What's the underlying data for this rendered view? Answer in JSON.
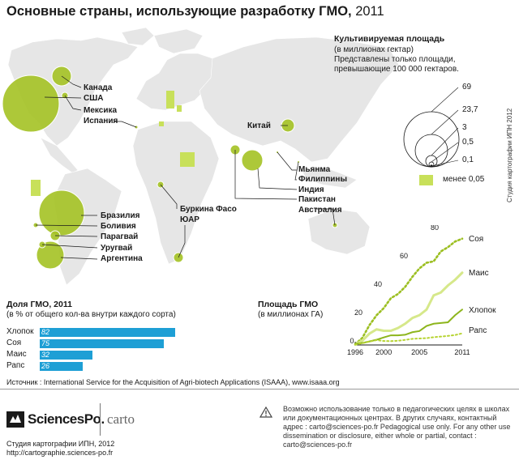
{
  "title": {
    "bold": "Основные страны, использующие разработку ГМО,",
    "year": "2011"
  },
  "map": {
    "labels": {
      "canada": "Канада",
      "usa": "США",
      "mexico": "Мексика",
      "spain": "Испания",
      "china": "Китай",
      "myanmar": "Мьянма",
      "philippines": "Филиппины",
      "india": "Индия",
      "pakistan": "Пакистан",
      "australia": "Австралия",
      "burkina": "Буркина Фасо",
      "sa": "ЮАР",
      "brazil": "Бразилия",
      "bolivia": "Боливия",
      "paraguay": "Парагвай",
      "uruguay": "Уругвай",
      "argentina": "Аргентина"
    }
  },
  "legend": {
    "title": "Культивируемая площадь",
    "subtitle": "(в миллионах гектар)",
    "note": "Представлены только площади, превышающие 100 000 гектаров.",
    "circle_values": [
      "69",
      "23,7",
      "3",
      "0,5",
      "0,1"
    ],
    "small_label": "менее 0,05"
  },
  "studio_vertical": "Студия картографии ИПН 2012",
  "share": {
    "title": "Доля ГМО, 2011",
    "subtitle": "(в % от общего кол-ва внутри каждого сорта)",
    "rows": [
      {
        "label": "Хлопок",
        "value": "82"
      },
      {
        "label": "Соя",
        "value": "75"
      },
      {
        "label": "Маис",
        "value": "32"
      },
      {
        "label": "Рапс",
        "value": "26"
      }
    ]
  },
  "area": {
    "title": "Площадь ГМО",
    "subtitle": "(в миллионах ГА)"
  },
  "chart_data": [
    {
      "type": "bar",
      "title": "Доля ГМО, 2011",
      "subtitle": "(в % от общего кол-ва внутри каждого сорта)",
      "categories": [
        "Хлопок",
        "Соя",
        "Маис",
        "Рапс"
      ],
      "values": [
        82,
        75,
        32,
        26
      ],
      "orientation": "horizontal"
    },
    {
      "type": "line",
      "title": "Площадь ГМО",
      "subtitle": "(в миллионах ГА)",
      "x_ticks": [
        "1996",
        "2000",
        "2005",
        "2011"
      ],
      "y_ticks": [
        "0",
        "20",
        "40",
        "60",
        "80"
      ],
      "ylim": [
        0,
        80
      ],
      "xlim": [
        1996,
        2011
      ],
      "series": [
        {
          "name": "Соя",
          "x": [
            1996,
            1997,
            1998,
            1999,
            2000,
            2001,
            2002,
            2003,
            2004,
            2005,
            2006,
            2007,
            2008,
            2009,
            2010,
            2011
          ],
          "values": [
            0.5,
            5,
            14,
            21,
            26,
            33,
            36,
            41,
            48,
            54,
            58,
            59,
            66,
            69,
            73,
            75
          ]
        },
        {
          "name": "Маис",
          "x": [
            1996,
            1997,
            1998,
            1999,
            2000,
            2001,
            2002,
            2003,
            2004,
            2005,
            2006,
            2007,
            2008,
            2009,
            2010,
            2011
          ],
          "values": [
            0.3,
            3,
            8,
            11,
            10,
            10,
            12,
            15,
            19,
            21,
            25,
            35,
            37,
            42,
            46,
            51
          ]
        },
        {
          "name": "Хлопок",
          "x": [
            1996,
            1997,
            1998,
            1999,
            2000,
            2001,
            2002,
            2003,
            2004,
            2005,
            2006,
            2007,
            2008,
            2009,
            2010,
            2011
          ],
          "values": [
            0.8,
            1.4,
            2.5,
            3.7,
            5.3,
            6.8,
            6.8,
            7.2,
            9,
            9.8,
            13.4,
            15,
            15.5,
            16,
            21,
            25
          ]
        },
        {
          "name": "Рапс",
          "x": [
            1996,
            1997,
            1998,
            1999,
            2000,
            2001,
            2002,
            2003,
            2004,
            2005,
            2006,
            2007,
            2008,
            2009,
            2010,
            2011
          ],
          "values": [
            0.1,
            1.2,
            2.4,
            3.4,
            2.8,
            2.7,
            3,
            3.6,
            4.3,
            4.6,
            4.8,
            5.5,
            5.9,
            6.4,
            7,
            8.2
          ]
        }
      ]
    }
  ],
  "source": "Источник : International Service for the Acquisition of Agri-biotech Applications (ISAAA), www.isaaa.org",
  "footer": {
    "logo": "SciencesPo.",
    "carto": "carto",
    "studio_line1": "Студия картографии ИПН, 2012",
    "studio_line2": "http://cartographie.sciences-po.fr",
    "notice": "Возможно использование только в педагогических целях в школах или документационных центрах. В других случаях, контактный адрес : carto@sciences-po.fr Pedagogical use only. For any other use dissemination or disclosure, either whole or partial, contact : carto@sciences-po.fr"
  },
  "colors": {
    "green": "#b7d433",
    "blue": "#1e9fd5",
    "land": "#e6e6e6"
  }
}
